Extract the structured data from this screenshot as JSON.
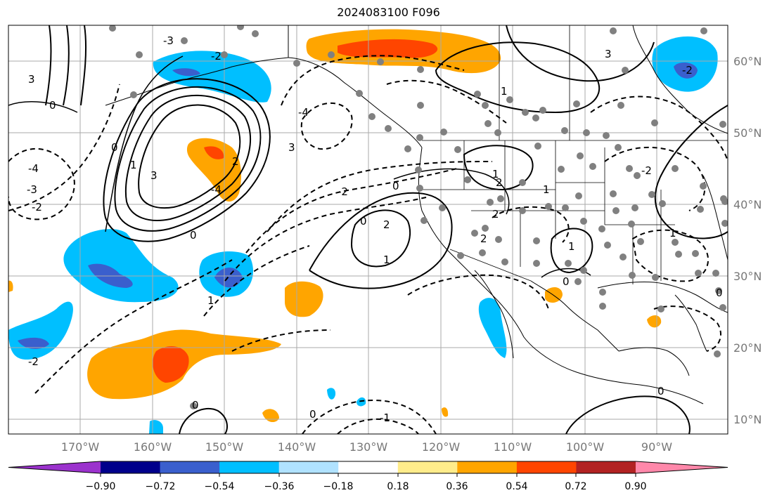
{
  "title": "2024083100 F096",
  "lat_labels": [
    "60°N",
    "50°N",
    "40°N",
    "30°N",
    "20°N",
    "10°N"
  ],
  "lon_labels": [
    "170°W",
    "160°W",
    "150°W",
    "140°W",
    "130°W",
    "120°W",
    "110°W",
    "100°W",
    "90°W"
  ],
  "colorbar": {
    "tick_labels": [
      "−0.90",
      "−0.72",
      "−0.54",
      "−0.36",
      "−0.18",
      "0.18",
      "0.36",
      "0.54",
      "0.72",
      "0.90"
    ],
    "colors": [
      "#9b32cd",
      "#00008b",
      "#3a5fcd",
      "#00bfff",
      "#b0e2ff",
      "#ffffff",
      "#ffec8b",
      "#ffa500",
      "#ff4500",
      "#b22222",
      "#ff88aa"
    ]
  },
  "contour_labels": [
    "3",
    "2",
    "1",
    "0",
    "-1",
    "-2",
    "-3",
    "-4"
  ],
  "colors": {
    "cold_fill": "#00bfff",
    "cold_core": "#3a5fcd",
    "warm_fill": "#ffa500",
    "warm_core": "#ff4500",
    "station_dot": "#808080",
    "grid": "#aaaaaa"
  }
}
